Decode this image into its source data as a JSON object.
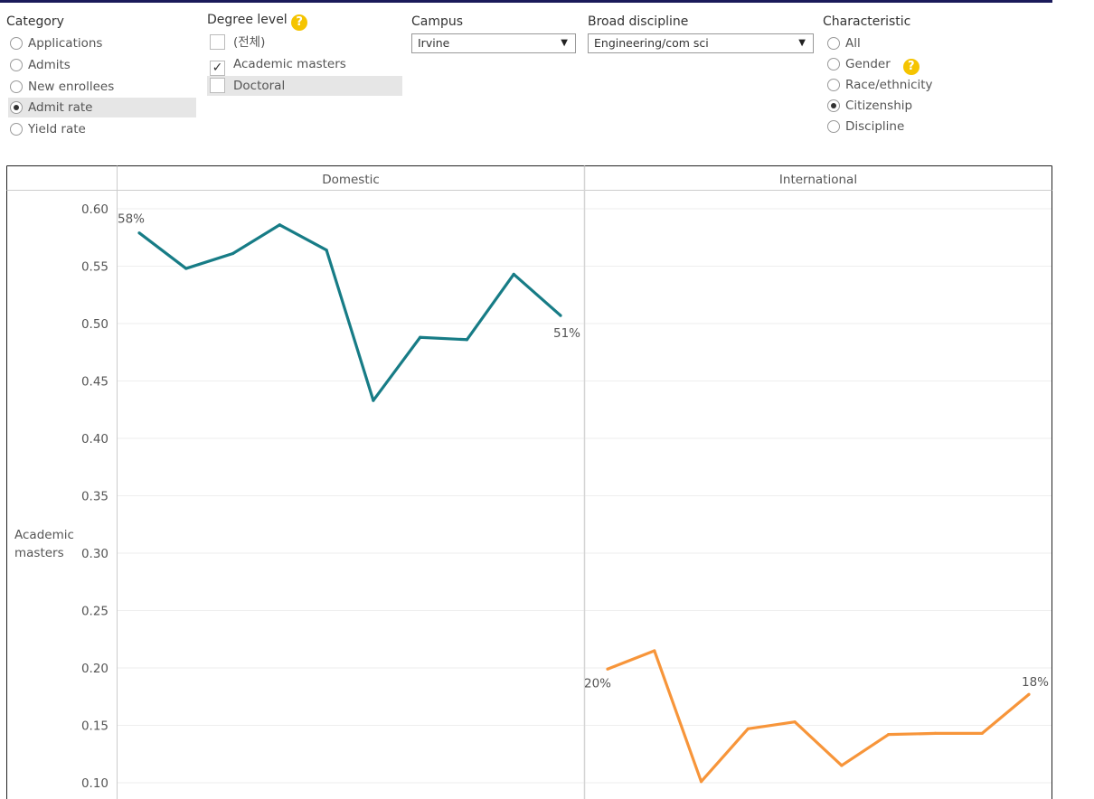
{
  "controls": {
    "category": {
      "title": "Category",
      "options": [
        "Applications",
        "Admits",
        "New enrollees",
        "Admit rate",
        "Yield rate"
      ],
      "selected": "Admit rate"
    },
    "degree_level": {
      "title": "Degree level",
      "help": "?",
      "options": [
        {
          "label": "(전체)",
          "checked": false
        },
        {
          "label": "Academic masters",
          "checked": true
        },
        {
          "label": "Doctoral",
          "checked": false
        }
      ]
    },
    "campus": {
      "title": "Campus",
      "value": "Irvine"
    },
    "broad_discipline": {
      "title": "Broad discipline",
      "value": "Engineering/com sci"
    },
    "characteristic": {
      "title": "Characteristic",
      "help": "?",
      "options": [
        "All",
        "Gender",
        "Race/ethnicity",
        "Citizenship",
        "Discipline"
      ],
      "selected": "Citizenship"
    }
  },
  "colors": {
    "domestic": "#177c86",
    "international": "#f7953a",
    "accent": "#f5c400"
  },
  "chart_data": {
    "type": "line",
    "row_label": "Academic masters",
    "panels": [
      {
        "name": "Domestic",
        "color": "#177c86",
        "values": [
          0.579,
          0.548,
          0.561,
          0.586,
          0.564,
          0.433,
          0.488,
          0.486,
          0.543,
          0.507
        ],
        "start_label": "58%",
        "end_label": "51%"
      },
      {
        "name": "International",
        "color": "#f7953a",
        "values": [
          0.199,
          0.215,
          0.101,
          0.147,
          0.153,
          0.115,
          0.142,
          0.143,
          0.143,
          0.177
        ],
        "start_label": "20%",
        "end_label": "18%"
      }
    ],
    "yticks": [
      "0.60",
      "0.55",
      "0.50",
      "0.45",
      "0.40",
      "0.35",
      "0.30",
      "0.25",
      "0.20",
      "0.15",
      "0.10"
    ],
    "ylim": [
      0.1,
      0.6
    ],
    "grid": true
  }
}
